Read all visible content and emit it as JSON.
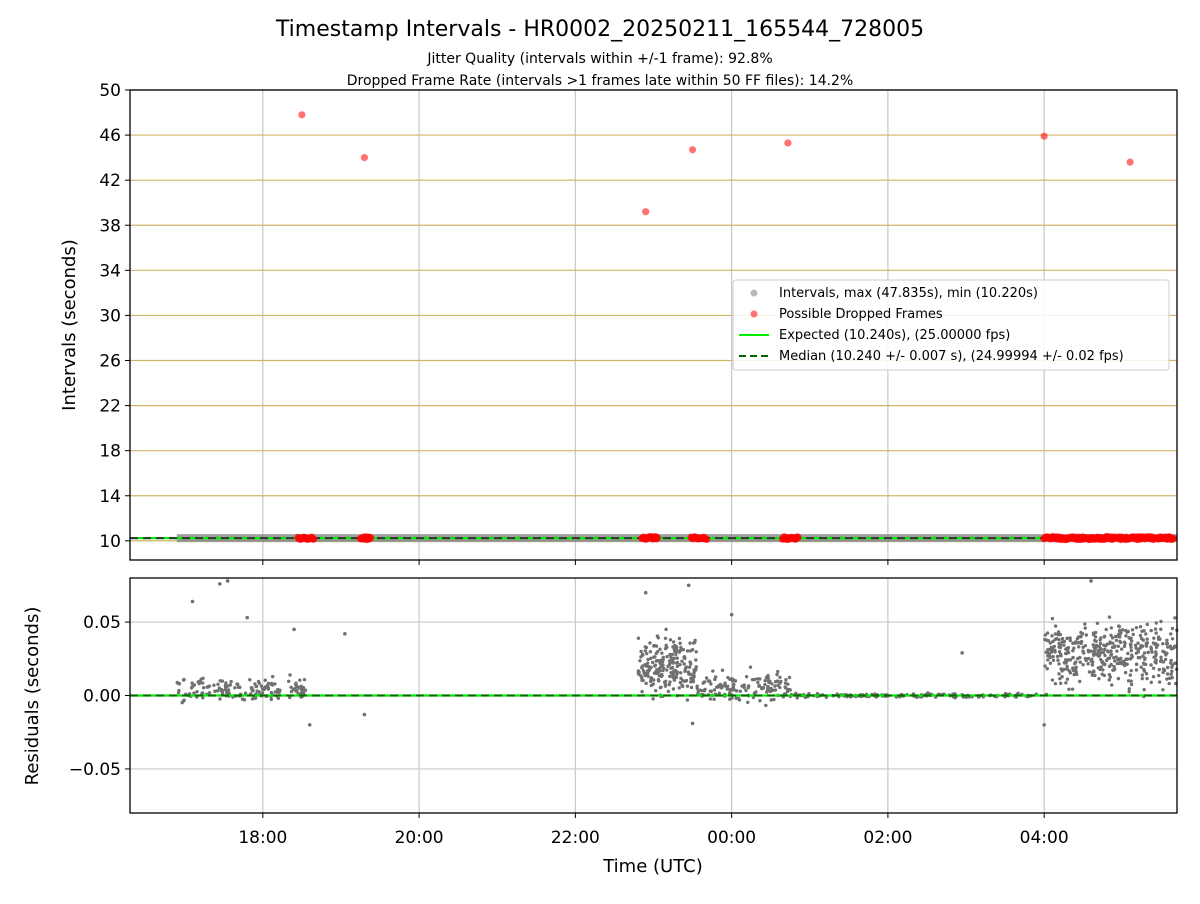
{
  "colors": {
    "interval": "#808080",
    "dropped": "#ff0000",
    "expected": "#00ee00",
    "median": "#006400",
    "hgrid_top": "#d2b469",
    "grid": "#c8c8c8"
  },
  "chart_data": [
    {
      "type": "scatter",
      "title": "Timestamp Intervals - HR0002_20250211_165544_728005",
      "subtitle_1": "Jitter Quality (intervals within +/-1 frame): 92.8%",
      "subtitle_2": "Dropped Frame Rate (intervals >1 frames late within 50 FF files): 14.2%",
      "xlabel": "",
      "ylabel": "Intervals (seconds)",
      "x_unit": "hours since 00:00 UTC (negative = previous day)",
      "xlim": [
        -7.7,
        5.7
      ],
      "ylim": [
        8.3,
        50
      ],
      "yticks": [
        10,
        14,
        18,
        22,
        26,
        30,
        34,
        38,
        42,
        46,
        50
      ],
      "grid": "on",
      "legend_position": "center-right",
      "legend": [
        "Intervals, max (47.835s), min (10.220s)",
        "Possible Dropped Frames",
        "Expected (10.240s), (25.00000 fps)",
        "Median (10.240 +/- 0.007 s), (24.99994 +/- 0.02 fps)"
      ],
      "expected_interval": 10.24,
      "median_interval": 10.24,
      "interval_band": {
        "x_from": -7.1,
        "x_to": 5.7,
        "y": 10.24
      },
      "dropped_frames": [
        {
          "x": -5.5,
          "y": 47.8
        },
        {
          "x": -4.7,
          "y": 44.0
        },
        {
          "x": -1.1,
          "y": 39.2
        },
        {
          "x": -0.5,
          "y": 44.7
        },
        {
          "x": 0.72,
          "y": 45.3
        },
        {
          "x": 4.0,
          "y": 45.9
        },
        {
          "x": 5.1,
          "y": 43.6
        }
      ],
      "dropped_near_expected_ranges": [
        [
          -5.55,
          -5.35
        ],
        [
          -4.75,
          -4.62
        ],
        [
          -1.15,
          -0.95
        ],
        [
          -0.52,
          -0.32
        ],
        [
          0.65,
          0.85
        ],
        [
          4.0,
          5.65
        ]
      ]
    },
    {
      "type": "scatter",
      "xlabel": "Time (UTC)",
      "ylabel": "Residuals (seconds)",
      "xlim": [
        -7.7,
        5.7
      ],
      "ylim": [
        -0.08,
        0.08
      ],
      "yticks": [
        -0.05,
        0.0,
        0.05
      ],
      "ytick_labels": [
        "−0.05",
        "0.00",
        "0.05"
      ],
      "xticks": [
        -6,
        -4,
        -2,
        0,
        2,
        4
      ],
      "xtick_labels": [
        "18:00",
        "20:00",
        "22:00",
        "00:00",
        "02:00",
        "04:00"
      ],
      "grid": "on",
      "residual_clusters": [
        {
          "x_from": -7.1,
          "x_to": -5.45,
          "y_mid": 0.003,
          "spread": 0.012,
          "count": 160
        },
        {
          "x_from": -1.2,
          "x_to": -0.45,
          "y_mid": 0.02,
          "spread": 0.028,
          "count": 220
        },
        {
          "x_from": -0.45,
          "x_to": 0.75,
          "y_mid": 0.006,
          "spread": 0.016,
          "count": 140
        },
        {
          "x_from": 0.75,
          "x_to": 3.9,
          "y_mid": 0.0,
          "spread": 0.002,
          "count": 160
        },
        {
          "x_from": 4.0,
          "x_to": 5.7,
          "y_mid": 0.028,
          "spread": 0.032,
          "count": 420
        }
      ],
      "residual_outliers": [
        {
          "x": -6.9,
          "y": 0.064
        },
        {
          "x": -6.55,
          "y": 0.076
        },
        {
          "x": -6.45,
          "y": 0.078
        },
        {
          "x": -6.2,
          "y": 0.053
        },
        {
          "x": -5.6,
          "y": 0.045
        },
        {
          "x": -5.4,
          "y": -0.02
        },
        {
          "x": -4.95,
          "y": 0.042
        },
        {
          "x": -4.7,
          "y": -0.013
        },
        {
          "x": -1.1,
          "y": 0.07
        },
        {
          "x": -0.55,
          "y": 0.075
        },
        {
          "x": -0.5,
          "y": -0.019
        },
        {
          "x": 0.0,
          "y": 0.055
        },
        {
          "x": 2.95,
          "y": 0.029
        },
        {
          "x": 4.0,
          "y": -0.02
        },
        {
          "x": 4.6,
          "y": 0.078
        }
      ]
    }
  ]
}
